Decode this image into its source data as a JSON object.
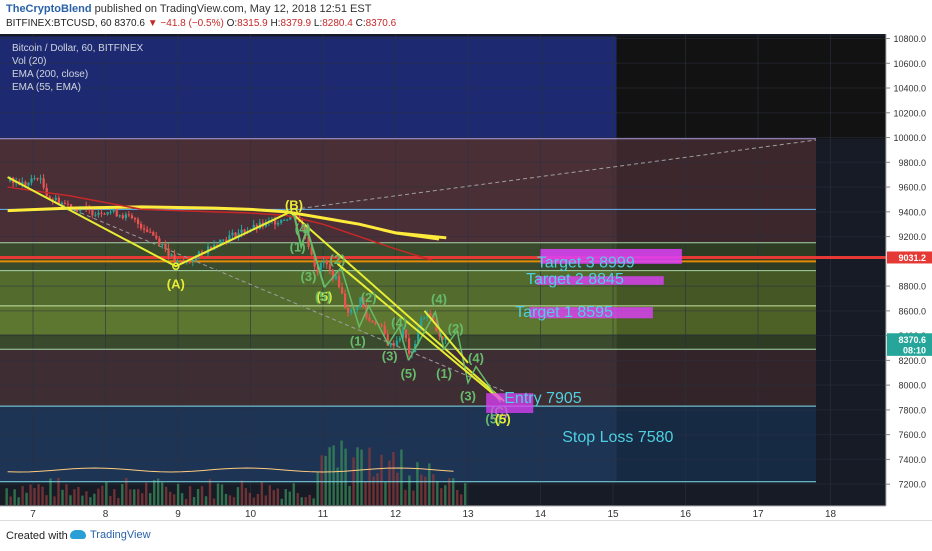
{
  "header": {
    "author": "TheCryptoBlend",
    "published": "published on TradingView.com, May 12, 2018 12:51 EST",
    "symbol": "BITFINEX:BTCUSD, 60",
    "last": "8370.6",
    "change": "−41.8 (−0.5%)",
    "o_label": "O:",
    "o_val": "8315.9",
    "h_label": "H:",
    "h_val": "8379.9",
    "l_label": "L:",
    "l_val": "8280.4",
    "c_label": "C:",
    "c_val": "8370.6"
  },
  "legend": {
    "title": "Bitcoin / Dollar, 60, BITFINEX",
    "vol": "Vol (20)",
    "ema200": "EMA (200, close)",
    "ema55": "EMA (55, EMA)"
  },
  "footer": {
    "created": "Created with",
    "brand": "TradingView"
  },
  "chart_data": {
    "type": "line",
    "title": "Bitcoin / Dollar, 60, BITFINEX",
    "x_tick_labels": [
      "7",
      "8",
      "9",
      "10",
      "11",
      "12",
      "13",
      "14",
      "15",
      "16",
      "17",
      "18"
    ],
    "x_ticks": [
      7,
      8,
      9,
      10,
      11,
      12,
      13,
      14,
      15,
      16,
      17,
      18
    ],
    "y_tick_labels": [
      "10800.0",
      "10600.0",
      "10400.0",
      "10200.0",
      "10000.0",
      "9800.0",
      "9600.0",
      "9400.0",
      "9200.0",
      "8800.0",
      "8600.0",
      "8400.0",
      "8200.0",
      "8000.0",
      "7800.0",
      "7600.0",
      "7400.0",
      "7200.0"
    ],
    "y_ticks": [
      10800,
      10600,
      10400,
      10200,
      10000,
      9800,
      9600,
      9400,
      9200,
      8800,
      8600,
      8400,
      8200,
      8000,
      7800,
      7600,
      7400,
      7200
    ],
    "xlim": [
      6.6,
      18.6
    ],
    "ylim": [
      7060,
      10850
    ],
    "price_badges": [
      {
        "label": "9031.2",
        "value": 9031.2,
        "color": "#e53935"
      },
      {
        "label": "8370.6",
        "value": 8370.6,
        "color": "#26a69a"
      },
      {
        "label": "08:10",
        "value": 8285,
        "color": "#26a69a"
      }
    ],
    "price_series": {
      "name": "BTCUSD",
      "x": [
        6.65,
        6.9,
        7.05,
        7.2,
        7.4,
        7.6,
        7.8,
        8.0,
        8.2,
        8.4,
        8.6,
        8.8,
        8.95,
        9.1,
        9.3,
        9.5,
        9.7,
        9.9,
        10.1,
        10.3,
        10.5,
        10.62,
        10.72,
        10.82,
        10.9,
        11.0,
        11.1,
        11.2,
        11.3,
        11.4,
        11.5,
        11.6,
        11.7,
        11.8,
        11.9,
        12.0,
        12.1,
        12.2,
        12.3,
        12.4,
        12.5,
        12.6,
        12.7
      ],
      "y": [
        9650,
        9620,
        9690,
        9520,
        9470,
        9430,
        9400,
        9410,
        9380,
        9320,
        9240,
        9120,
        8980,
        8990,
        9060,
        9150,
        9200,
        9250,
        9280,
        9320,
        9360,
        9380,
        9250,
        9080,
        8920,
        9000,
        8900,
        8830,
        8620,
        8580,
        8700,
        8520,
        8520,
        8450,
        8310,
        8360,
        8440,
        8200,
        8470,
        8590,
        8520,
        8360,
        8370
      ]
    },
    "ema200": {
      "name": "EMA (200, close)",
      "x": [
        6.65,
        7.5,
        8.5,
        9.5,
        10.0,
        10.5,
        11.0,
        11.5,
        12.0,
        12.6
      ],
      "y": [
        9410,
        9430,
        9440,
        9430,
        9420,
        9400,
        9350,
        9300,
        9230,
        9180
      ]
    },
    "ema55": {
      "name": "EMA (55, EMA)",
      "x": [
        6.65,
        7.5,
        8.5,
        9.5,
        10.0,
        10.5,
        11.0,
        11.5,
        12.0,
        12.5
      ],
      "y": [
        9600,
        9530,
        9420,
        9400,
        9390,
        9370,
        9300,
        9200,
        9100,
        9010
      ]
    },
    "levels": [
      {
        "name": "Target 3 8999",
        "value": 8999,
        "color": "#ff5722"
      },
      {
        "name": "Target 2 8845",
        "value": 8845,
        "color": "#a5d6a7"
      },
      {
        "name": "Target 1 8595",
        "value": 8595,
        "color": "#a5d6a7"
      },
      {
        "name": "Entry 7905",
        "value": 7905,
        "color": "#80deea"
      },
      {
        "name": "Stop Loss 7580",
        "value": 7580,
        "color": "#80deea"
      }
    ],
    "annotations": [
      {
        "text": "Target 3 8999",
        "x": 13.95,
        "y": 8999,
        "color": "#4dd0e1"
      },
      {
        "text": "Target 2 8845",
        "x": 13.8,
        "y": 8865,
        "color": "#4dd0e1"
      },
      {
        "text": "Target 1 8595",
        "x": 13.65,
        "y": 8600,
        "color": "#4dd0e1"
      },
      {
        "text": "Entry 7905",
        "x": 13.5,
        "y": 7905,
        "color": "#4dd0e1"
      },
      {
        "text": "Stop Loss 7580",
        "x": 14.3,
        "y": 7590,
        "color": "#4dd0e1"
      }
    ],
    "wave_labels": [
      {
        "text": "(A)",
        "x": 8.97,
        "y": 8820,
        "color": "#e6ee33"
      },
      {
        "text": "(B)",
        "x": 10.6,
        "y": 9460,
        "color": "#e6ee33"
      },
      {
        "text": "(4)",
        "x": 10.72,
        "y": 9270,
        "color": "#66bb6a"
      },
      {
        "text": "(1)",
        "x": 10.65,
        "y": 9120,
        "color": "#66bb6a"
      },
      {
        "text": "(2)",
        "x": 11.2,
        "y": 9020,
        "color": "#66bb6a"
      },
      {
        "text": "(3)",
        "x": 10.8,
        "y": 8880,
        "color": "#66bb6a"
      },
      {
        "text": "(5)",
        "x": 11.02,
        "y": 8720,
        "color": "#e6ee33"
      },
      {
        "text": "(5)",
        "x": 11.0,
        "y": 8720,
        "color": "#66bb6a"
      },
      {
        "text": "(2)",
        "x": 11.63,
        "y": 8710,
        "color": "#66bb6a"
      },
      {
        "text": "(4)",
        "x": 12.05,
        "y": 8510,
        "color": "#66bb6a"
      },
      {
        "text": "(1)",
        "x": 11.48,
        "y": 8360,
        "color": "#66bb6a"
      },
      {
        "text": "(3)",
        "x": 11.92,
        "y": 8240,
        "color": "#66bb6a"
      },
      {
        "text": "(5)",
        "x": 12.18,
        "y": 8100,
        "color": "#66bb6a"
      },
      {
        "text": "(4)",
        "x": 12.6,
        "y": 8700,
        "color": "#66bb6a"
      },
      {
        "text": "(2)",
        "x": 12.83,
        "y": 8460,
        "color": "#66bb6a"
      },
      {
        "text": "(1)",
        "x": 12.67,
        "y": 8100,
        "color": "#66bb6a"
      },
      {
        "text": "(4)",
        "x": 13.11,
        "y": 8225,
        "color": "#66bb6a"
      },
      {
        "text": "(3)",
        "x": 13.0,
        "y": 7915,
        "color": "#66bb6a"
      },
      {
        "text": "(C)",
        "x": 13.43,
        "y": 7790,
        "color": "#ba68c8"
      },
      {
        "text": "(5)",
        "x": 13.35,
        "y": 7730,
        "color": "#66bb6a"
      },
      {
        "text": "(5)",
        "x": 13.48,
        "y": 7730,
        "color": "#e6ee33"
      }
    ]
  }
}
